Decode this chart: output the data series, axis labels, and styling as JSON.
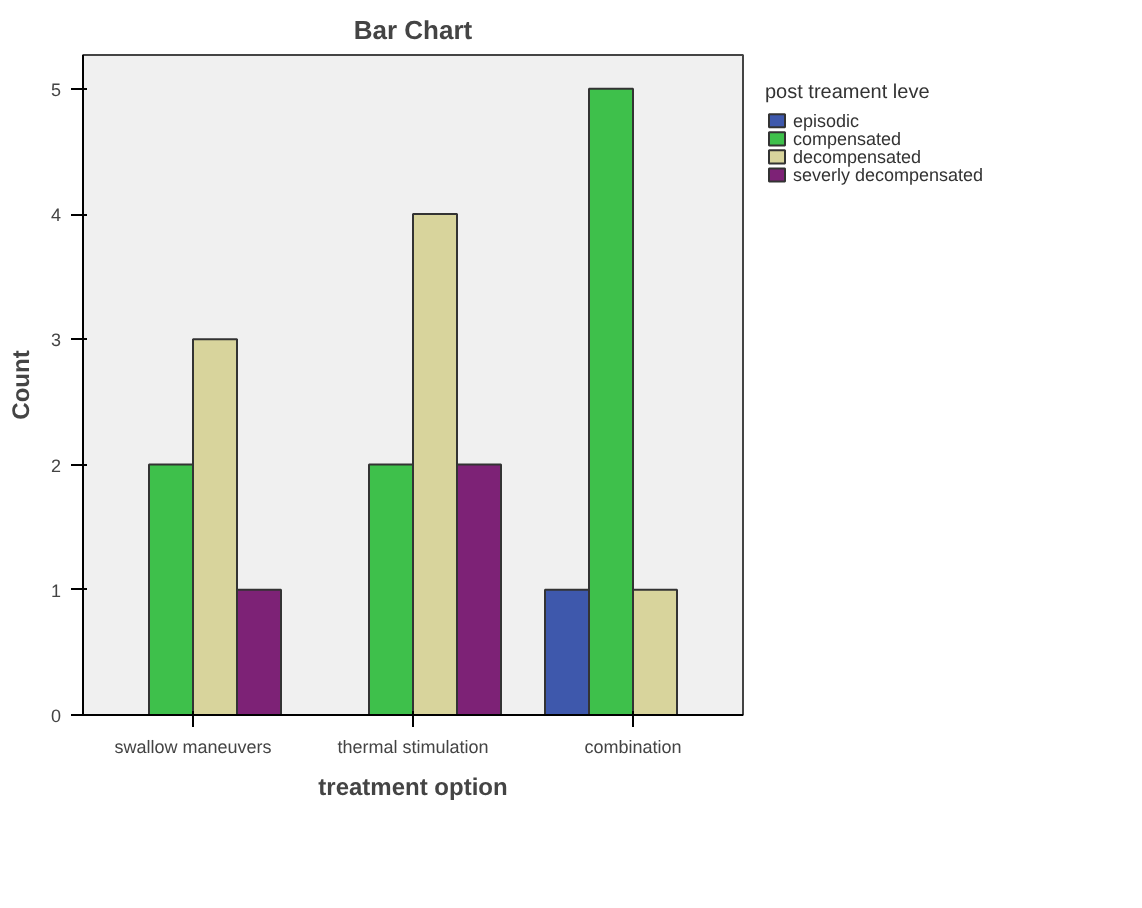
{
  "chart_data": {
    "type": "bar",
    "title": "Bar Chart",
    "xlabel": "treatment option",
    "ylabel": "Count",
    "legend_title": "post treament leve",
    "categories": [
      "swallow maneuvers",
      "thermal stimulation",
      "combination"
    ],
    "series": [
      {
        "name": "episodic",
        "color": "#3e58ac",
        "values": [
          null,
          null,
          1
        ]
      },
      {
        "name": "compensated",
        "color": "#3ec04b",
        "values": [
          2,
          2,
          5
        ]
      },
      {
        "name": "decompensated",
        "color": "#d8d49c",
        "values": [
          3,
          4,
          1
        ]
      },
      {
        "name": "severly decompensated",
        "color": "#7d2276",
        "values": [
          1,
          2,
          null
        ]
      }
    ],
    "ylim": [
      0,
      5.27
    ],
    "yticks": [
      0,
      1,
      2,
      3,
      4,
      5
    ],
    "grid": false,
    "legend": "right"
  }
}
